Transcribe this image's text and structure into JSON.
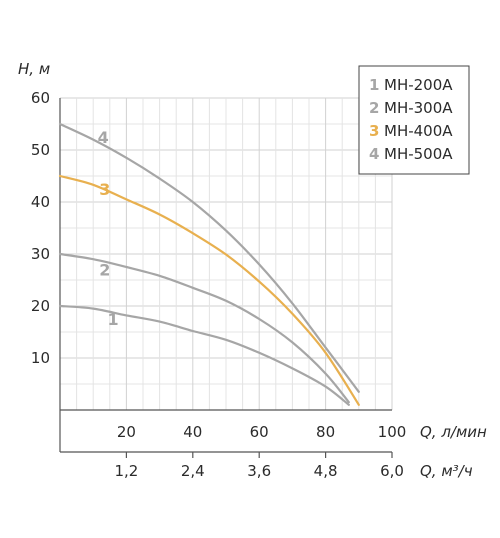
{
  "chart_data": {
    "type": "line",
    "ylabel": "H, м",
    "xlabel": "Q, л/мин",
    "x2label": "Q, м³/ч",
    "xlim": [
      0,
      100
    ],
    "ylim": [
      0,
      60
    ],
    "x2lim": [
      0,
      6.0
    ],
    "yticks": [
      "10",
      "20",
      "30",
      "40",
      "50",
      "60"
    ],
    "ytick_values": [
      10,
      20,
      30,
      40,
      50,
      60
    ],
    "xticks": [
      "20",
      "40",
      "60",
      "80",
      "100"
    ],
    "xtick_values": [
      20,
      40,
      60,
      80,
      100
    ],
    "x2ticks": [
      "1,2",
      "2,4",
      "3,6",
      "4,8",
      "6,0"
    ],
    "x2tick_values": [
      1.2,
      2.4,
      3.6,
      4.8,
      6.0
    ],
    "grid": true,
    "legend_position": "top-right",
    "series": [
      {
        "name": "MH-200A",
        "label": "1",
        "color": "#a6a6a6",
        "label_at": [
          16,
          17.5
        ],
        "points": [
          [
            0,
            20
          ],
          [
            10,
            19.5
          ],
          [
            20,
            18.2
          ],
          [
            30,
            17
          ],
          [
            40,
            15.2
          ],
          [
            50,
            13.5
          ],
          [
            60,
            11
          ],
          [
            70,
            8
          ],
          [
            80,
            4.5
          ],
          [
            87,
            1
          ]
        ]
      },
      {
        "name": "MH-300A",
        "label": "2",
        "color": "#a6a6a6",
        "label_at": [
          13.5,
          27
        ],
        "points": [
          [
            0,
            30
          ],
          [
            10,
            29
          ],
          [
            20,
            27.5
          ],
          [
            30,
            25.8
          ],
          [
            40,
            23.5
          ],
          [
            50,
            21
          ],
          [
            60,
            17.5
          ],
          [
            70,
            13
          ],
          [
            80,
            7
          ],
          [
            87,
            1.5
          ]
        ]
      },
      {
        "name": "MH-400A",
        "label": "3",
        "color": "#e8b04f",
        "label_at": [
          13.5,
          42.5
        ],
        "points": [
          [
            0,
            45
          ],
          [
            10,
            43.3
          ],
          [
            20,
            40.5
          ],
          [
            30,
            37.6
          ],
          [
            40,
            34
          ],
          [
            50,
            29.9
          ],
          [
            60,
            24.7
          ],
          [
            70,
            18.5
          ],
          [
            80,
            11
          ],
          [
            90,
            1
          ]
        ]
      },
      {
        "name": "MH-500A",
        "label": "4",
        "color": "#a6a6a6",
        "label_at": [
          13,
          52.5
        ],
        "points": [
          [
            0,
            55
          ],
          [
            10,
            52
          ],
          [
            20,
            48.5
          ],
          [
            30,
            44.5
          ],
          [
            40,
            40
          ],
          [
            50,
            34.5
          ],
          [
            60,
            28
          ],
          [
            70,
            20.5
          ],
          [
            80,
            12
          ],
          [
            90,
            3.5
          ]
        ]
      }
    ]
  }
}
